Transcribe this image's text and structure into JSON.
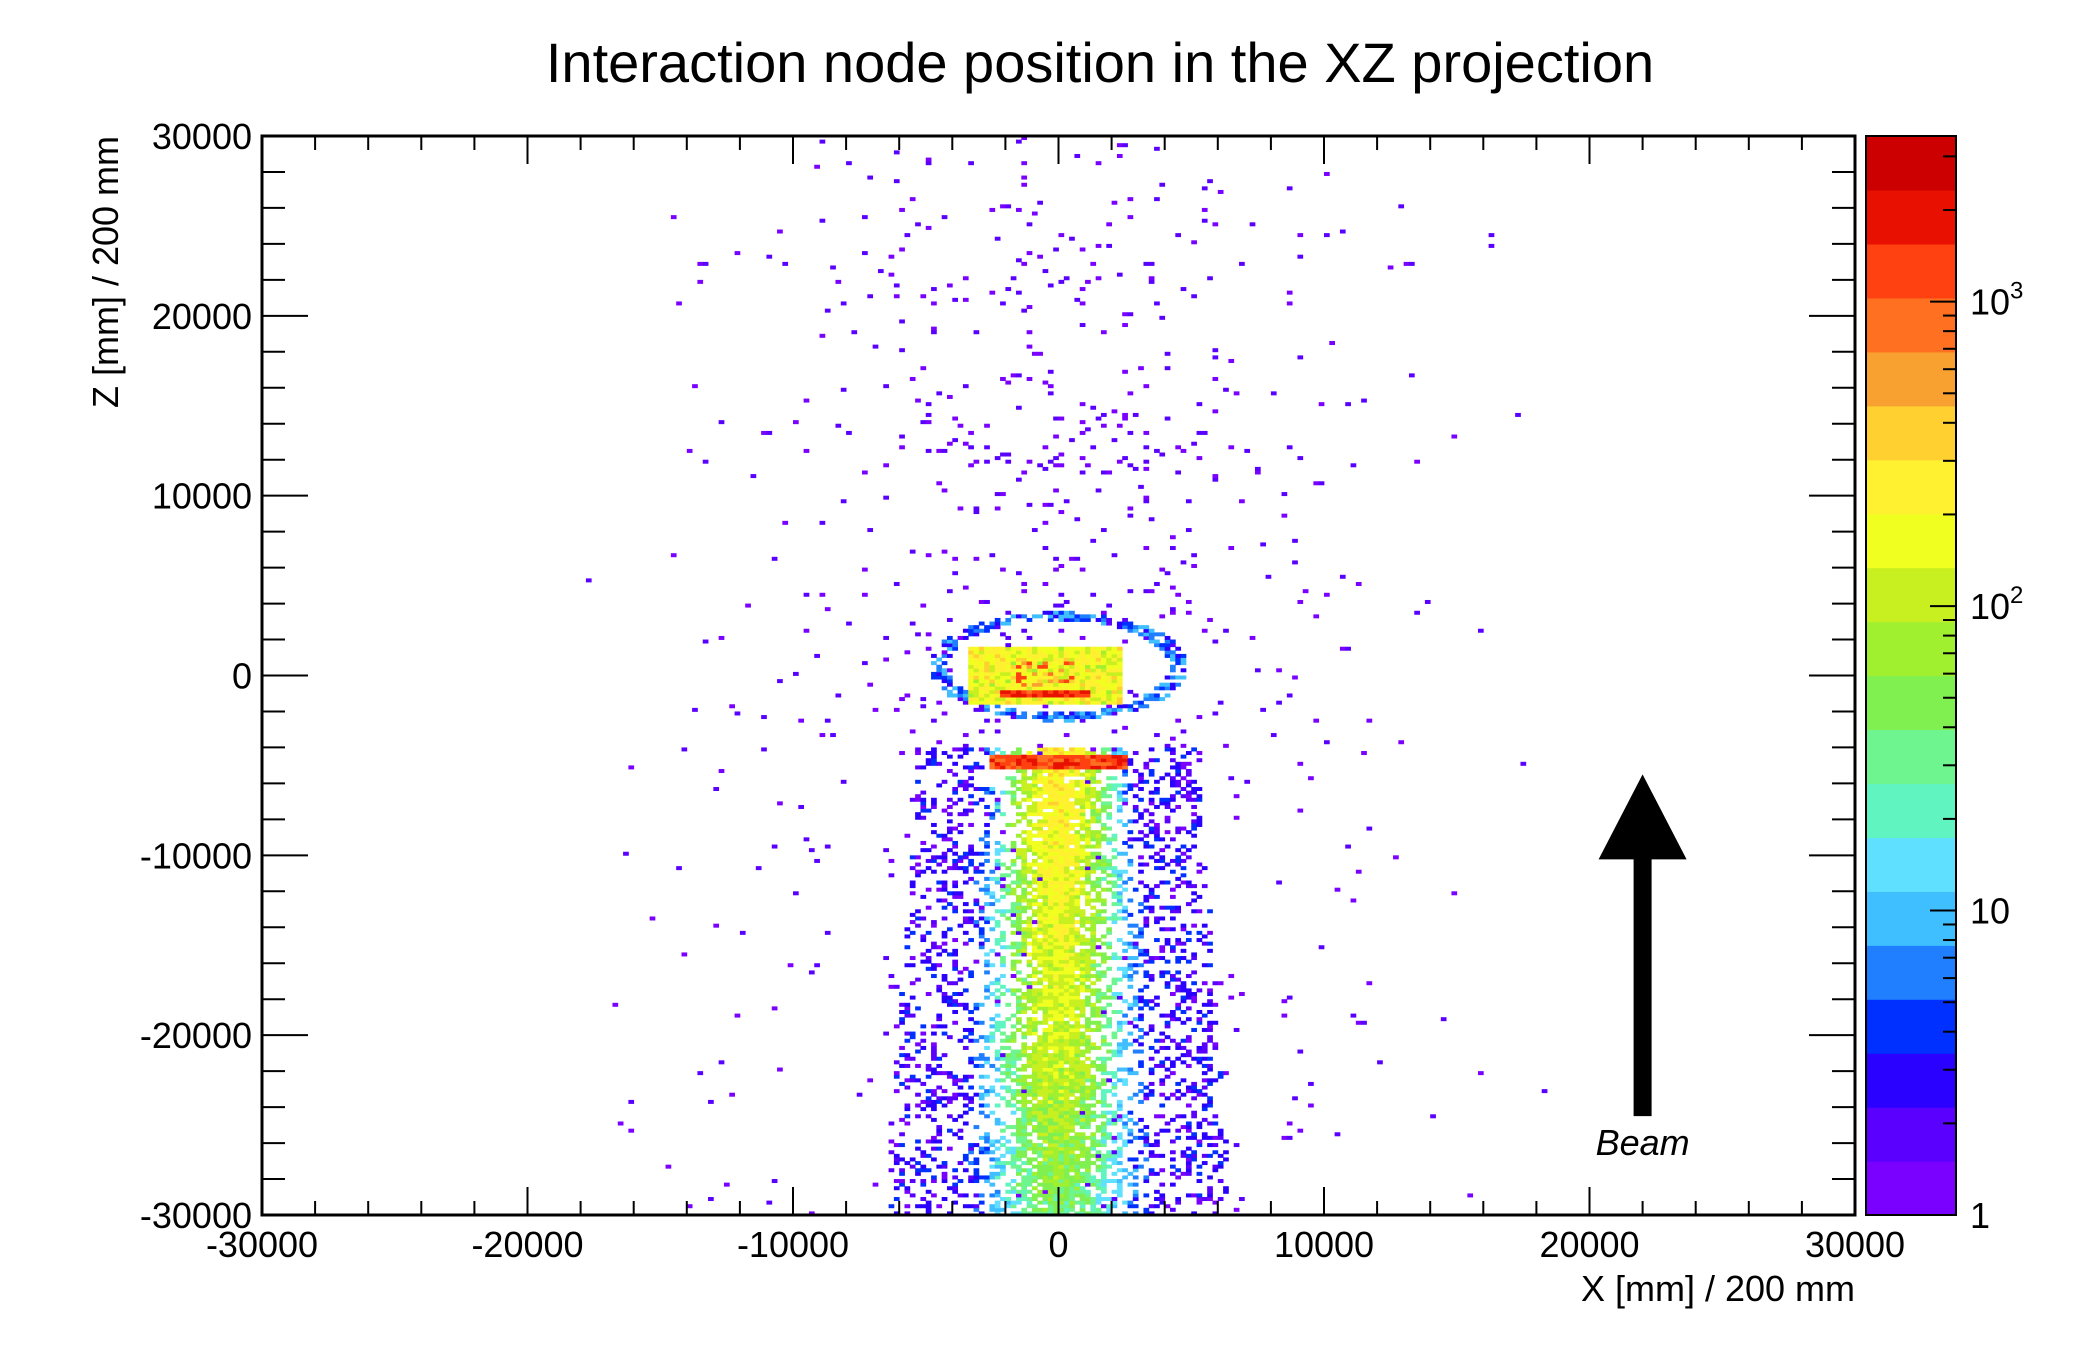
{
  "chart_data": {
    "type": "heatmap",
    "title": "Interaction node position in the XZ projection",
    "xlabel": "X [mm] / 200 mm",
    "ylabel": "Z [mm] / 200 mm",
    "xlim": [
      -30000,
      30000
    ],
    "ylim": [
      -30000,
      30000
    ],
    "x_ticks": [
      -30000,
      -20000,
      -10000,
      0,
      10000,
      20000,
      30000
    ],
    "y_ticks": [
      -30000,
      -20000,
      -10000,
      0,
      10000,
      20000,
      30000
    ],
    "x_tick_labels": [
      "-30000",
      "-20000",
      "-10000",
      "0",
      "10000",
      "20000",
      "30000"
    ],
    "y_tick_labels": [
      "-30000",
      "-20000",
      "-10000",
      "0",
      "10000",
      "20000",
      "30000"
    ],
    "bin_width": 200,
    "colorbar": {
      "scale": "log",
      "range": [
        1,
        3500
      ],
      "ticks": [
        1,
        10,
        100,
        1000
      ],
      "tick_labels": [
        {
          "base": "1",
          "exp": ""
        },
        {
          "base": "10",
          "exp": ""
        },
        {
          "base": "10",
          "exp": "2"
        },
        {
          "base": "10",
          "exp": "3"
        }
      ],
      "colors": [
        "#7a00ff",
        "#5a00ff",
        "#2a00ff",
        "#0030ff",
        "#1f7fff",
        "#3fbfff",
        "#60e0ff",
        "#60f5c0",
        "#6ff58f",
        "#80f050",
        "#a0f030",
        "#c8f020",
        "#f0ff20",
        "#fff030",
        "#ffd030",
        "#f8a030",
        "#ff7020",
        "#ff4010",
        "#e81000",
        "#cc0000"
      ]
    },
    "regions": [
      {
        "name": "upstream beam cone",
        "x_range": [
          -4000,
          4000
        ],
        "z_range": [
          -30000,
          -4000
        ],
        "counts_range": [
          1,
          300
        ],
        "peak_count": 300
      },
      {
        "name": "dense band",
        "x_center": 0,
        "z_center": -4800,
        "x_half_width": 2600,
        "count": 1500
      },
      {
        "name": "detector core",
        "x_center": -500,
        "z_center": 0,
        "x_half_width": 3000,
        "counts_range": [
          100,
          800
        ],
        "peak_count": 2000
      },
      {
        "name": "outer shell",
        "x_center": 0,
        "z_center": 500,
        "radius": 4500,
        "counts_range": [
          1,
          10
        ]
      },
      {
        "name": "sparse halo",
        "x_range": [
          -20000,
          20000
        ],
        "z_range": [
          -30000,
          30000
        ],
        "counts_range": [
          1,
          3
        ]
      }
    ],
    "annotations": [
      {
        "text": "Beam",
        "arrow": "up",
        "x": 22000,
        "z_range": [
          -24500,
          -5500
        ],
        "label_z": -26000
      }
    ]
  }
}
